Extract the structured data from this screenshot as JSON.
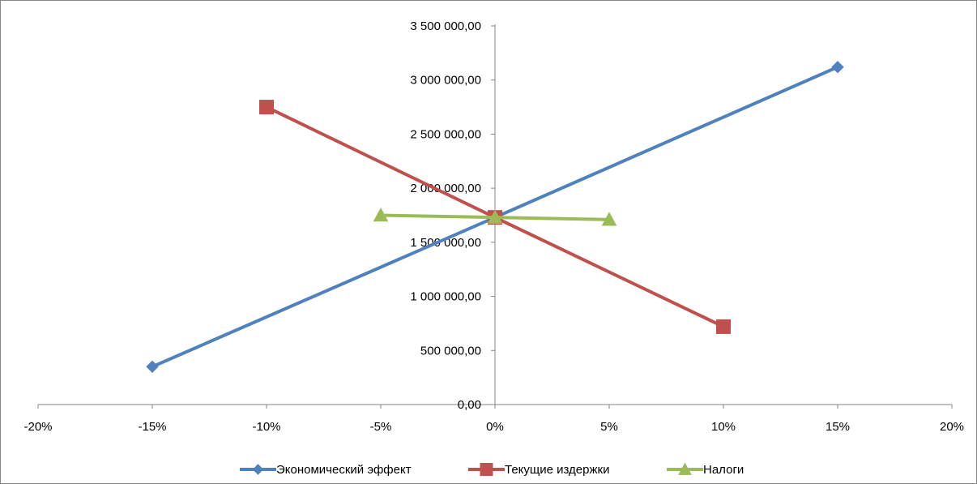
{
  "chart_data": {
    "type": "scatter",
    "title": "",
    "xlabel": "",
    "ylabel": "",
    "xlim": [
      -0.2,
      0.2
    ],
    "ylim": [
      0,
      3500000
    ],
    "x_ticks": [
      -0.2,
      -0.15,
      -0.1,
      -0.05,
      0,
      0.05,
      0.1,
      0.15,
      0.2
    ],
    "x_tick_labels": [
      "-20%",
      "-15%",
      "-10%",
      "-5%",
      "0%",
      "5%",
      "10%",
      "15%",
      "20%"
    ],
    "y_ticks": [
      0,
      500000,
      1000000,
      1500000,
      2000000,
      2500000,
      3000000,
      3500000
    ],
    "y_tick_labels": [
      "0,00",
      "500 000,00",
      "1 000 000,00",
      "1 500 000,00",
      "2 000 000,00",
      "2 500 000,00",
      "3 000 000,00",
      "3 500 000,00"
    ],
    "grid": false,
    "legend_position": "bottom",
    "series": [
      {
        "name": "Экономический эффект",
        "color": "#4F81BD",
        "marker": "diamond",
        "x": [
          -0.15,
          0,
          0.15
        ],
        "y": [
          350000,
          1730000,
          3120000
        ]
      },
      {
        "name": "Текущие издержки",
        "color": "#C0504D",
        "marker": "square",
        "x": [
          -0.1,
          0,
          0.1
        ],
        "y": [
          2750000,
          1730000,
          720000
        ]
      },
      {
        "name": "Налоги",
        "color": "#9BBB59",
        "marker": "triangle",
        "x": [
          -0.05,
          0,
          0.05
        ],
        "y": [
          1750000,
          1730000,
          1710000
        ]
      }
    ]
  }
}
